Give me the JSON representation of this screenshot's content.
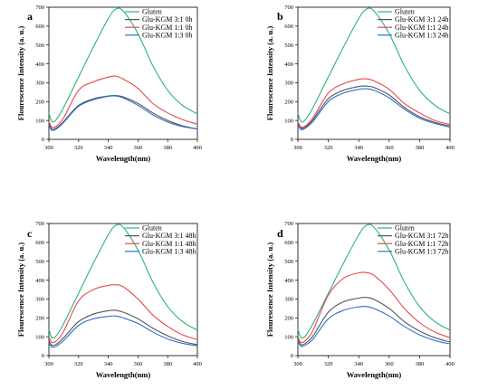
{
  "chart_data": [
    {
      "type": "line",
      "panel": "a",
      "xlabel": "Wavelength(nm)",
      "ylabel": "Flourescence Intensity (a. u.)",
      "xlim": [
        300,
        400
      ],
      "ylim": [
        0,
        700
      ],
      "xticks": [
        "300",
        "320",
        "340",
        "360",
        "380",
        "400"
      ],
      "yticks": [
        "0",
        "100",
        "200",
        "300",
        "400",
        "500",
        "600",
        "700"
      ],
      "grid": false,
      "legend_position": "top-right",
      "x": [
        300,
        302,
        305,
        310,
        320,
        330,
        340,
        345,
        350,
        360,
        370,
        380,
        390,
        400
      ],
      "series": [
        {
          "name": "Gluten",
          "color": "#2bb37c",
          "values": [
            140,
            95,
            105,
            170,
            330,
            490,
            640,
            690,
            680,
            560,
            390,
            260,
            180,
            135
          ]
        },
        {
          "name": "Glu-KGM 3:1 0h",
          "color": "#555555",
          "values": [
            85,
            55,
            60,
            95,
            180,
            215,
            230,
            232,
            225,
            190,
            140,
            100,
            72,
            55
          ]
        },
        {
          "name": "Glu-KGM 1:1 0h",
          "color": "#e8484f",
          "values": [
            95,
            65,
            70,
            115,
            260,
            305,
            330,
            335,
            320,
            270,
            190,
            140,
            105,
            80
          ]
        },
        {
          "name": "Glu-KGM 1:3 0h",
          "color": "#2f6fd0",
          "values": [
            75,
            48,
            55,
            90,
            175,
            210,
            228,
            230,
            220,
            180,
            130,
            92,
            68,
            55
          ]
        }
      ]
    },
    {
      "type": "line",
      "panel": "b",
      "xlabel": "Wavelength(nm)",
      "ylabel": "Flourescence Intensity (a. u.)",
      "xlim": [
        300,
        400
      ],
      "ylim": [
        0,
        700
      ],
      "xticks": [
        "300",
        "320",
        "340",
        "360",
        "380",
        "400"
      ],
      "yticks": [
        "0",
        "100",
        "200",
        "300",
        "400",
        "500",
        "600",
        "700"
      ],
      "grid": false,
      "legend_position": "top-right",
      "x": [
        300,
        302,
        305,
        310,
        320,
        330,
        340,
        345,
        350,
        360,
        370,
        380,
        390,
        400
      ],
      "series": [
        {
          "name": "Gluten",
          "color": "#2bb37c",
          "values": [
            140,
            95,
            105,
            170,
            330,
            490,
            640,
            690,
            680,
            560,
            390,
            260,
            180,
            135
          ]
        },
        {
          "name": "Glu-KGM 3:1 24h",
          "color": "#555555",
          "values": [
            90,
            60,
            65,
            105,
            215,
            260,
            280,
            282,
            275,
            235,
            170,
            120,
            90,
            70
          ]
        },
        {
          "name": "Glu-KGM 1:1 24h",
          "color": "#e8484f",
          "values": [
            95,
            65,
            72,
            115,
            245,
            295,
            318,
            320,
            310,
            265,
            190,
            140,
            100,
            78
          ]
        },
        {
          "name": "Glu-KGM 1:3 24h",
          "color": "#2f6fd0",
          "values": [
            80,
            52,
            60,
            95,
            200,
            245,
            265,
            268,
            260,
            220,
            160,
            112,
            84,
            65
          ]
        }
      ]
    },
    {
      "type": "line",
      "panel": "c",
      "xlabel": "Wavelength(nm)",
      "ylabel": "Flourescence Intensity (a. u.)",
      "xlim": [
        300,
        400
      ],
      "ylim": [
        0,
        700
      ],
      "xticks": [
        "300",
        "320",
        "340",
        "360",
        "380",
        "400"
      ],
      "yticks": [
        "0",
        "100",
        "200",
        "300",
        "400",
        "500",
        "600",
        "700"
      ],
      "grid": false,
      "legend_position": "top-right",
      "x": [
        300,
        302,
        305,
        310,
        320,
        330,
        340,
        345,
        350,
        360,
        370,
        380,
        390,
        400
      ],
      "series": [
        {
          "name": "Gluten",
          "color": "#2bb37c",
          "values": [
            140,
            95,
            105,
            170,
            330,
            490,
            640,
            690,
            680,
            560,
            390,
            260,
            180,
            135
          ]
        },
        {
          "name": "Glu-KGM 3:1 48h",
          "color": "#555555",
          "values": [
            80,
            55,
            60,
            95,
            180,
            220,
            238,
            240,
            230,
            195,
            145,
            105,
            75,
            58
          ]
        },
        {
          "name": "Glu-KGM 1:1 48h",
          "color": "#e8484f",
          "values": [
            100,
            70,
            78,
            130,
            290,
            350,
            372,
            375,
            365,
            300,
            215,
            155,
            110,
            85
          ]
        },
        {
          "name": "Glu-KGM 1:3 48h",
          "color": "#2f6fd0",
          "values": [
            70,
            45,
            50,
            80,
            160,
            195,
            208,
            210,
            200,
            170,
            125,
            88,
            65,
            52
          ]
        }
      ]
    },
    {
      "type": "line",
      "panel": "d",
      "xlabel": "Wavelength(nm)",
      "ylabel": "Flourescence Intensity (a. u.)",
      "xlim": [
        300,
        400
      ],
      "ylim": [
        0,
        700
      ],
      "xticks": [
        "300",
        "320",
        "340",
        "360",
        "380",
        "400"
      ],
      "yticks": [
        "0",
        "100",
        "200",
        "300",
        "400",
        "500",
        "600",
        "700"
      ],
      "grid": false,
      "legend_position": "top-right",
      "x": [
        300,
        302,
        305,
        310,
        320,
        330,
        340,
        345,
        350,
        360,
        370,
        380,
        390,
        400
      ],
      "series": [
        {
          "name": "Gluten",
          "color": "#2bb37c",
          "values": [
            140,
            95,
            105,
            170,
            330,
            490,
            640,
            690,
            680,
            560,
            390,
            260,
            180,
            135
          ]
        },
        {
          "name": "Glu-KGM 3:1 72h",
          "color": "#555555",
          "values": [
            85,
            58,
            65,
            105,
            230,
            285,
            305,
            308,
            298,
            250,
            180,
            130,
            95,
            72
          ]
        },
        {
          "name": "Glu-KGM 1:1 72h",
          "color": "#e8484f",
          "values": [
            100,
            70,
            80,
            135,
            320,
            410,
            438,
            440,
            425,
            350,
            250,
            175,
            125,
            95
          ]
        },
        {
          "name": "Glu-KGM 1:3 72h",
          "color": "#2f6fd0",
          "values": [
            75,
            50,
            56,
            88,
            195,
            240,
            258,
            260,
            250,
            210,
            155,
            110,
            80,
            62
          ]
        }
      ]
    }
  ]
}
